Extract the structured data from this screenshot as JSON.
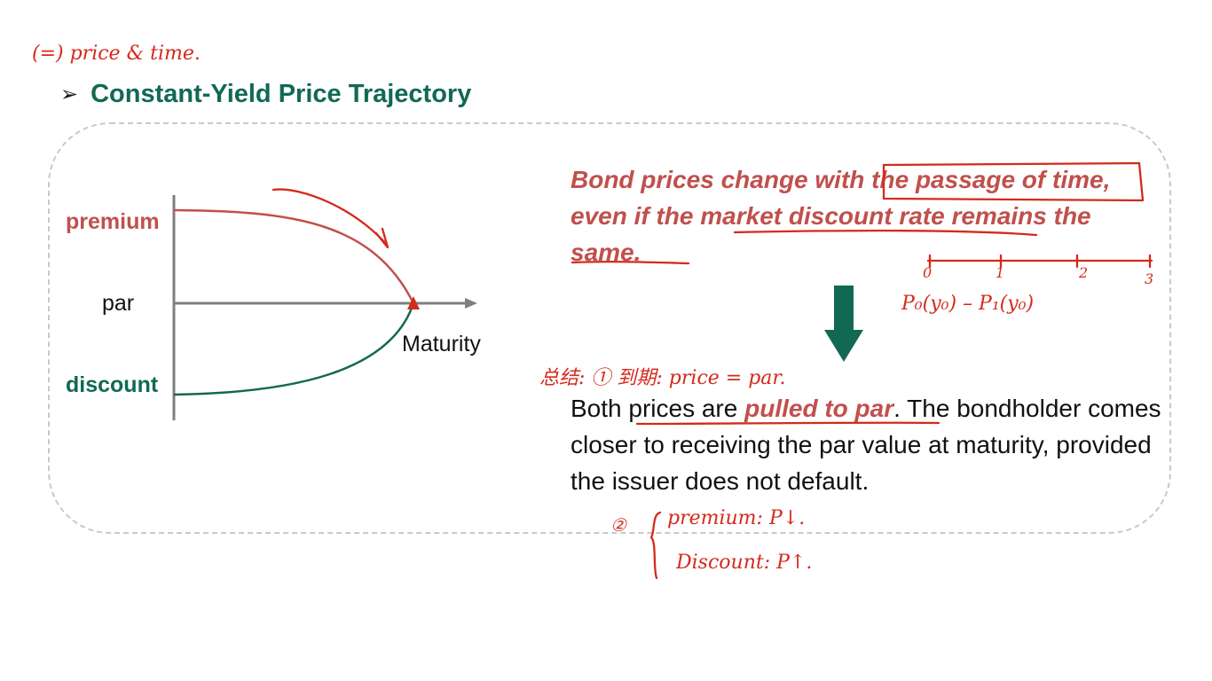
{
  "slide": {
    "title": "Constant-Yield Price Trajectory",
    "bullet_icon": "arrowhead-bullet-icon",
    "accent_color": "#116954",
    "premium_color": "#c0504d"
  },
  "diagram": {
    "premium_label": "premium",
    "par_label": "par",
    "discount_label": "discount",
    "maturity_label": "Maturity"
  },
  "statement": {
    "part1": "Bond prices change with ",
    "part2": "the passage of time",
    "part3": ", even if the market discount rate remains the same."
  },
  "down_arrow_icon": "down-arrow-icon",
  "explanation": {
    "part1": "Both prices are ",
    "pulled": "pulled to par",
    "part2": ". The bondholder comes closer to receiving the par value at maturity, provided the issuer does not default."
  },
  "annotations": {
    "top_left_note": "(=) price & time.",
    "note_1": "总结: ① 到期: price = par.",
    "timeline_ticks": [
      "0",
      "1",
      "2",
      "3"
    ],
    "price_note": "P₀(y₀) – P₁(y₀)",
    "note_2_premium": "premium: P↓.",
    "note_2_discount": "Discount: P↑.",
    "note_2_marker": "②"
  }
}
